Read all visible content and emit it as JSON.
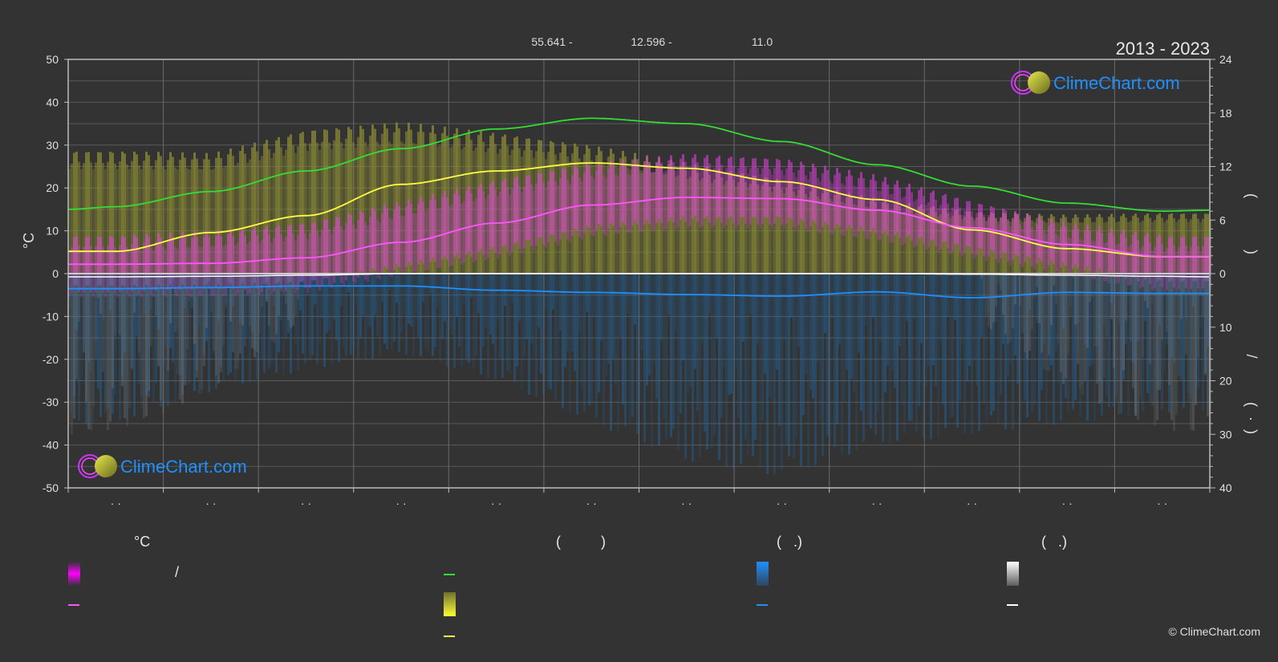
{
  "header": {
    "coord_lat": "55.641 -",
    "coord_lon": "12.596 -",
    "coord_alt": "11.0",
    "period": "2013 - 2023"
  },
  "brand": {
    "name": "ClimeChart.com",
    "copyright": "© ClimeChart.com"
  },
  "colors": {
    "background": "#333333",
    "daylight": "#33dd33",
    "sunshine": "#ffff44",
    "sunshine_band": "#b5b535",
    "temp_mean": "#ff55ff",
    "temp_band": "#ff33cc",
    "precip": "#1e90ff",
    "snow": "#ffffff",
    "brand": "#1e90ff"
  },
  "legend": {
    "temp_heading": "°C",
    "temp_slash": "/",
    "sun_heading": "(          )",
    "precip_heading": "(   .)",
    "snow_heading": "(   .)"
  },
  "chart_data": {
    "type": "area",
    "x_categories": 12,
    "month_tick_labels": [
      "· ·",
      "· ·",
      "· ·",
      "· ·",
      "· ·",
      "· ·",
      "· ·",
      "· ·",
      "· ·",
      "· ·",
      "· ·",
      "· ·"
    ],
    "left_axis": {
      "unit": "°C",
      "range": [
        -50,
        50
      ],
      "ticks": [
        50,
        40,
        30,
        20,
        10,
        0,
        -10,
        -20,
        -30,
        -40,
        -50
      ]
    },
    "right_axis_upper": {
      "range": [
        0,
        24
      ],
      "ticks": [
        24,
        18,
        12,
        6,
        0
      ],
      "glyphs": [
        "(",
        ")"
      ]
    },
    "right_axis_lower": {
      "range": [
        0,
        40
      ],
      "ticks": [
        10,
        20,
        30,
        40
      ],
      "glyphs": [
        "/",
        "(",
        "·",
        ")"
      ]
    },
    "grid": true,
    "series": [
      {
        "role": "daylight_hours",
        "axis": "right_upper",
        "x": [
          0,
          0.5,
          1.5,
          2.5,
          3.5,
          4.5,
          5.5,
          6.5,
          7.5,
          8.5,
          9.5,
          10.5,
          11.5,
          12
        ],
        "values": [
          7.2,
          7.5,
          9.2,
          11.5,
          14.0,
          16.2,
          17.4,
          16.8,
          14.8,
          12.2,
          9.8,
          7.9,
          7.0,
          7.1
        ]
      },
      {
        "role": "sunshine_hours",
        "axis": "right_upper",
        "x": [
          0,
          0.5,
          1.5,
          2.5,
          3.5,
          4.5,
          5.5,
          6.5,
          7.5,
          8.5,
          9.5,
          10.5,
          11.5,
          12
        ],
        "values": [
          2.5,
          2.5,
          4.6,
          6.5,
          10.0,
          11.5,
          12.4,
          11.8,
          10.3,
          8.3,
          4.9,
          2.8,
          1.9,
          1.9
        ]
      },
      {
        "role": "mean_temperature",
        "axis": "left",
        "x": [
          0,
          0.5,
          1.5,
          2.5,
          3.5,
          4.5,
          5.5,
          6.5,
          7.5,
          8.5,
          9.5,
          10.5,
          11.5,
          12
        ],
        "values": [
          2.2,
          2.2,
          2.4,
          3.7,
          7.3,
          11.8,
          16.0,
          17.8,
          17.5,
          14.8,
          10.7,
          6.8,
          4.0,
          4.0
        ]
      },
      {
        "role": "precipitation",
        "axis": "right_lower",
        "x": [
          0,
          0.5,
          1.5,
          2.5,
          3.5,
          4.5,
          5.5,
          6.5,
          7.5,
          8.5,
          9.5,
          10.5,
          11.5,
          12
        ],
        "values": [
          2.8,
          2.8,
          2.6,
          2.3,
          2.3,
          3.1,
          3.5,
          3.9,
          4.2,
          3.4,
          4.5,
          3.5,
          3.7,
          3.7
        ]
      },
      {
        "role": "snowfall",
        "axis": "right_lower",
        "x": [
          0,
          0.5,
          1.5,
          2.5,
          3.5,
          4.5,
          5.5,
          6.5,
          7.5,
          8.5,
          9.5,
          10.5,
          11.5,
          12
        ],
        "values": [
          0.6,
          0.6,
          0.5,
          0.3,
          0.0,
          0.0,
          0.0,
          0.0,
          0.0,
          0.0,
          0.1,
          0.3,
          0.5,
          0.6
        ]
      }
    ],
    "bands": {
      "sunshine_envelope_hours": [
        13.8,
        13.5,
        16.2,
        17.0,
        15.8,
        14.4,
        12.4,
        10.6,
        8.4,
        7.0,
        6.6,
        6.8
      ],
      "temp_band_upper": [
        7,
        8,
        10,
        15,
        20,
        24,
        26,
        25,
        21,
        15,
        10,
        7
      ],
      "temp_band_lower": [
        -4,
        -4,
        -3,
        1,
        5,
        10,
        12,
        12,
        9,
        5,
        1,
        -3
      ],
      "precip_band_max": [
        28,
        22,
        18,
        15,
        20,
        28,
        35,
        38,
        32,
        30,
        28,
        26
      ]
    }
  }
}
